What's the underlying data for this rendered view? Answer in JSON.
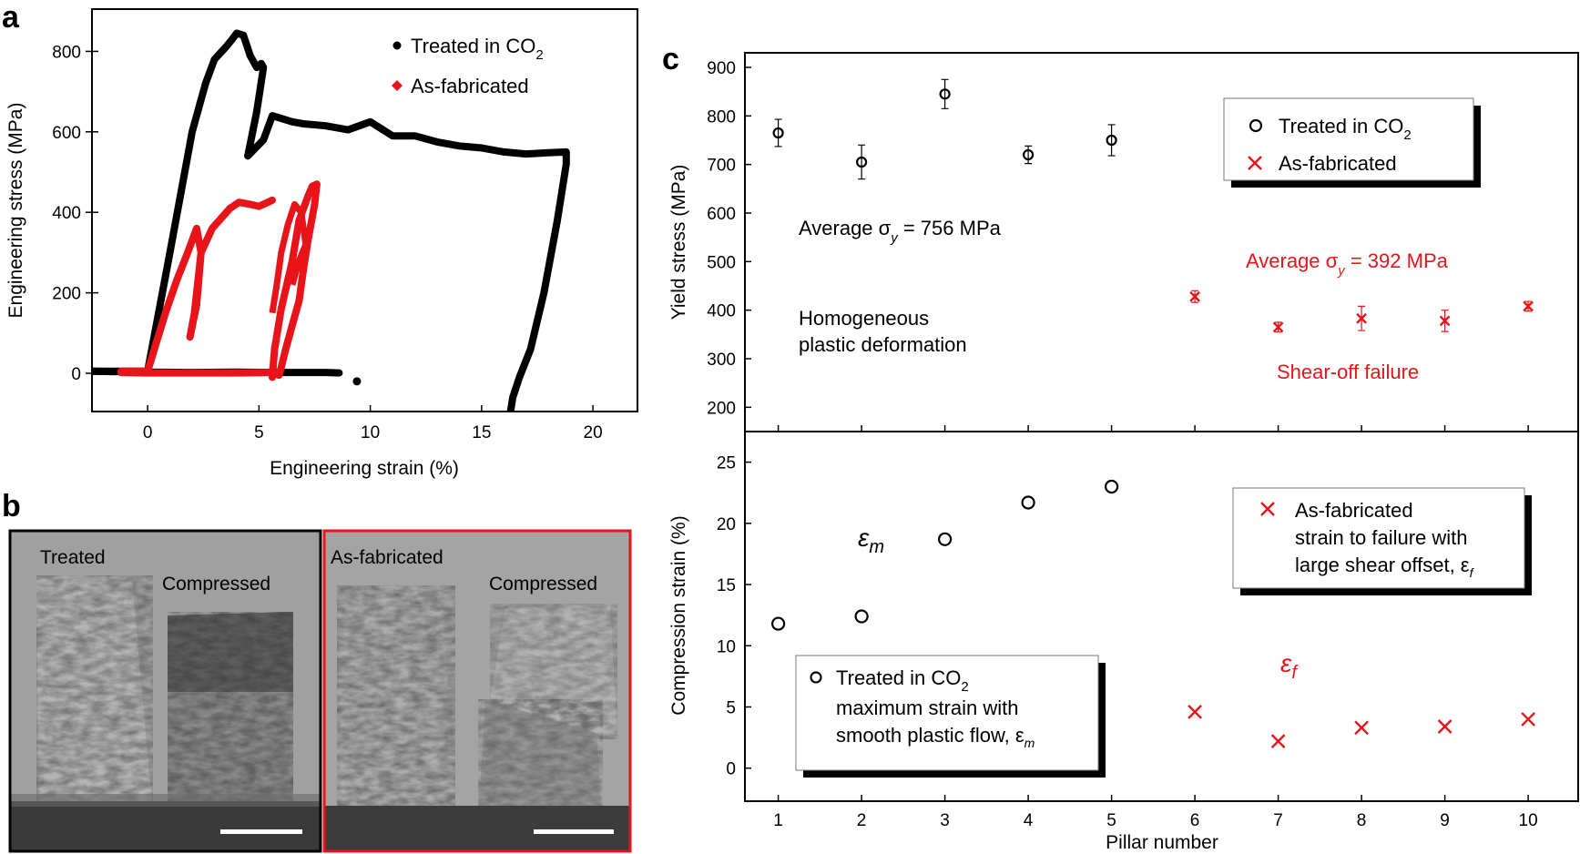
{
  "panels": {
    "a": {
      "label": "a"
    },
    "b": {
      "label": "b"
    },
    "c": {
      "label": "c"
    }
  },
  "chart_data": [
    {
      "id": "a",
      "type": "line",
      "xlabel": "Engineering strain (%)",
      "ylabel": "Engineering stress (MPa)",
      "xlim": [
        -2.5,
        22
      ],
      "ylim": [
        -95,
        905
      ],
      "xticks": [
        0,
        5,
        10,
        15,
        20
      ],
      "yticks": [
        0,
        200,
        400,
        600,
        800
      ],
      "legend": [
        {
          "name": "Treated in CO",
          "subscript": "2",
          "marker": "circle",
          "color": "#000000"
        },
        {
          "name": "As-fabricated",
          "subscript": "",
          "marker": "diamond",
          "color": "#e8141a"
        }
      ],
      "series": [
        {
          "name": "Treated in CO2",
          "color": "#000000",
          "x": [
            -2.5,
            0,
            1,
            2,
            2.6,
            3.0,
            3.5,
            3.8,
            4.0,
            4.3,
            4.6,
            4.9,
            5.1,
            5.2,
            4.9,
            4.5,
            5.2,
            5.6,
            6.5,
            7.0,
            8,
            9,
            10,
            11,
            12,
            13,
            14,
            15,
            16,
            17,
            18,
            18.8,
            18.8,
            18.4,
            17.8,
            17.2,
            16.7,
            16.4,
            16.3
          ],
          "y": [
            5,
            5,
            300,
            600,
            720,
            780,
            810,
            830,
            845,
            840,
            790,
            760,
            770,
            760,
            650,
            540,
            580,
            640,
            625,
            620,
            615,
            605,
            625,
            590,
            590,
            575,
            565,
            560,
            550,
            545,
            548,
            550,
            520,
            380,
            200,
            60,
            -10,
            -60,
            -95
          ]
        },
        {
          "name": "Treated in CO2 (unload tail)",
          "color": "#000000",
          "x": [
            -2.5,
            0,
            2,
            4,
            6,
            8,
            8.6
          ],
          "y": [
            5,
            3,
            2,
            3,
            2,
            2,
            1
          ]
        },
        {
          "name": "Treated in CO2 (debris point)",
          "color": "#000000",
          "x": [
            9.4
          ],
          "y": [
            -20
          ]
        },
        {
          "name": "As-fabricated",
          "color": "#e8141a",
          "x": [
            -1.2,
            0,
            0.3,
            0.8,
            1.3,
            1.8,
            2.2,
            2.4,
            2.1,
            1.9,
            2.2,
            2.4,
            2.9,
            3.3,
            3.7,
            4.1,
            4.6,
            5.0,
            5.4,
            5.6
          ],
          "y": [
            5,
            5,
            60,
            150,
            230,
            300,
            360,
            300,
            150,
            90,
            170,
            300,
            360,
            385,
            410,
            425,
            420,
            415,
            425,
            430
          ]
        },
        {
          "name": "As-fabricated (pillar 2)",
          "color": "#e8141a",
          "x": [
            5.6,
            5.7,
            6.0,
            6.5,
            6.8,
            7.2,
            7.4,
            7.6,
            7.5,
            7.2,
            7.0,
            6.8,
            6.5,
            6.2,
            6.0,
            5.9,
            5.7
          ],
          "y": [
            -10,
            60,
            160,
            280,
            380,
            440,
            465,
            470,
            420,
            330,
            260,
            180,
            120,
            60,
            15,
            -5,
            0
          ],
          "x_loop": [
            5.6,
            5.8,
            6.0,
            6.3,
            6.6,
            6.9,
            7.1,
            6.8,
            6.5
          ],
          "y_loop": [
            150,
            220,
            300,
            370,
            420,
            400,
            320,
            280,
            220
          ]
        },
        {
          "name": "As-fabricated (baseline)",
          "color": "#e8141a",
          "x": [
            -1.2,
            0,
            2,
            4,
            5.6
          ],
          "y": [
            2,
            1,
            1,
            1,
            2
          ]
        }
      ]
    },
    {
      "id": "c-top",
      "type": "scatter",
      "xlabel": "",
      "ylabel": "Yield stress (MPa)",
      "xlim": [
        0.6,
        10.6
      ],
      "ylim": [
        150,
        930
      ],
      "yticks": [
        200,
        300,
        400,
        500,
        600,
        700,
        800,
        900
      ],
      "legend": [
        {
          "name": "Treated in CO",
          "subscript": "2",
          "marker": "circle",
          "color": "#000000"
        },
        {
          "name": "As-fabricated",
          "subscript": "",
          "marker": "x",
          "color": "#e8141a"
        }
      ],
      "series": [
        {
          "name": "Treated in CO2",
          "color": "#000000",
          "marker": "circle",
          "x": [
            1,
            2,
            3,
            4,
            5
          ],
          "y": [
            765,
            705,
            845,
            720,
            750
          ],
          "err": [
            28,
            35,
            30,
            18,
            32
          ]
        },
        {
          "name": "As-fabricated",
          "color": "#e8141a",
          "marker": "x",
          "x": [
            6,
            7,
            8,
            9,
            10
          ],
          "y": [
            428,
            365,
            383,
            378,
            408
          ],
          "err": [
            12,
            10,
            25,
            22,
            10
          ]
        }
      ],
      "annotations": {
        "treated_average_prefix": "Average σ",
        "treated_average_sub": "y",
        "treated_average_value": " = 756 MPa",
        "asfab_average_prefix": "Average σ",
        "asfab_average_sub": "y",
        "asfab_average_value": " = 392 MPa",
        "homogeneous_line1": "Homogeneous",
        "homogeneous_line2": "plastic deformation",
        "shear_off": "Shear-off failure"
      }
    },
    {
      "id": "c-bottom",
      "type": "scatter",
      "xlabel": "Pillar number",
      "ylabel": "Compression strain (%)",
      "xlim": [
        0.6,
        10.6
      ],
      "ylim": [
        -2.7,
        27.5
      ],
      "xticks": [
        1,
        2,
        3,
        4,
        5,
        6,
        7,
        8,
        9,
        10
      ],
      "yticks": [
        0,
        5,
        10,
        15,
        20,
        25
      ],
      "series": [
        {
          "name": "Treated in CO2 maximum strain with smooth plastic flow",
          "color": "#000000",
          "marker": "circle",
          "x": [
            1,
            2,
            3,
            4,
            5
          ],
          "y": [
            11.8,
            12.4,
            18.7,
            21.7,
            23.0
          ]
        },
        {
          "name": "As-fabricated strain to failure with large shear offset",
          "color": "#e8141a",
          "marker": "x",
          "x": [
            6,
            7,
            8,
            9,
            10
          ],
          "y": [
            4.6,
            2.2,
            3.3,
            3.4,
            4.0
          ]
        }
      ],
      "legend_asfab": {
        "line1": "As-fabricated",
        "line2": "strain to failure with",
        "line3": "large shear offset, ε",
        "line3_sub": "f"
      },
      "legend_treated": {
        "line1": "Treated in CO",
        "line1_sub": "2",
        "line2": "maximum strain with",
        "line3": "smooth plastic flow, ε",
        "line3_sub": "m"
      },
      "annotations": {
        "eps_m": "ε",
        "eps_m_sub": "m",
        "eps_f": "ε",
        "eps_f_sub": "f"
      }
    }
  ],
  "photos": {
    "left_label1": "Treated",
    "left_label2": "Compressed",
    "right_label1": "As-fabricated",
    "right_label2": "Compressed",
    "left_border_color": "#000000",
    "right_border_color": "#e8141a"
  },
  "colors": {
    "black": "#000000",
    "red": "#e8141a"
  }
}
